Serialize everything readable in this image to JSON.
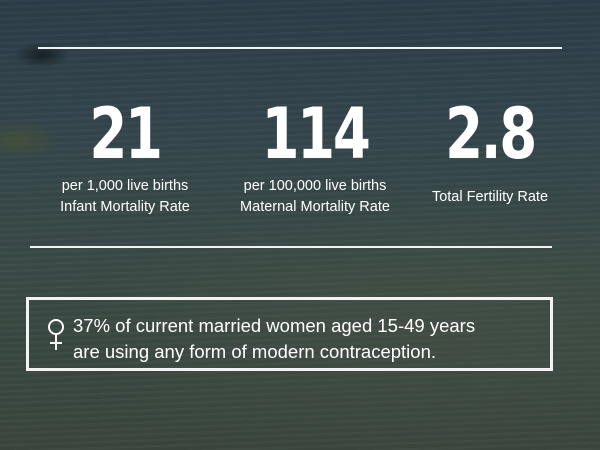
{
  "stats": [
    {
      "value": "21",
      "label_1": "per 1,000 live births",
      "label_2": "Infant Mortality Rate"
    },
    {
      "value": "114",
      "label_1": "per 100,000 live births",
      "label_2": "Maternal Mortality Rate"
    },
    {
      "value": "2.8",
      "label_1": "Total Fertility Rate"
    }
  ],
  "callout": {
    "icon": "female-symbol-icon",
    "line_1": "37% of current married women aged 15-49 years",
    "line_2": "are using any form of modern contraception."
  },
  "colors": {
    "text": "#ffffff",
    "rules": "#f2f2f2",
    "background": "#34464c"
  }
}
